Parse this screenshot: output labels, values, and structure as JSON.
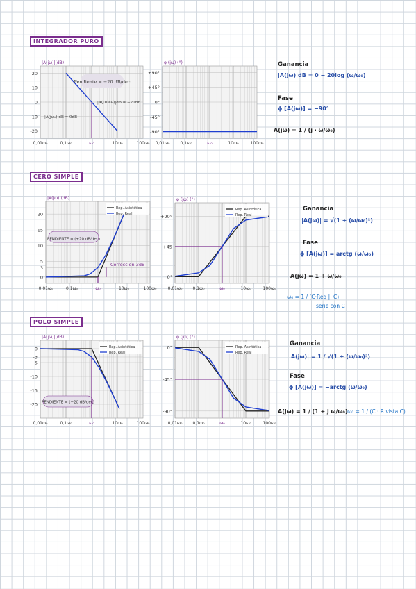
{
  "sections": {
    "integrador": "INTEGRADOR PURO",
    "cero": "CERO SIMPLE",
    "polo": "POLO SIMPLE"
  },
  "colors": {
    "asymptotic": "#222222",
    "real": "#1f3fd0",
    "accent": "#7b2e8e",
    "notes_blue": "#2a4fa8"
  },
  "chart_data": [
    {
      "id": "int-mag",
      "type": "line",
      "ylabel": "|A(jω)|(dB)",
      "xlog": true,
      "xlim": [
        0.01,
        100
      ],
      "ylim": [
        -25,
        25
      ],
      "xticks": [
        "0,01ω₀",
        "0,1ω₀",
        "ω₀",
        "10ω₀",
        "100ω₀"
      ],
      "yticks": [
        20,
        10,
        0,
        -10,
        -20
      ],
      "series": [
        {
          "style": "real",
          "x": [
            0.1,
            10
          ],
          "y": [
            20,
            -20
          ]
        }
      ],
      "annotations": [
        "Pendiente = −20 dB/dec",
        "|A(jω₀)|dB = 0dB",
        "|A(j10ω₀)|dB = −20dB"
      ]
    },
    {
      "id": "int-phase",
      "type": "line",
      "ylabel": "φ (jω) (°)",
      "xlog": true,
      "xlim": [
        0.01,
        100
      ],
      "ylim": [
        -110,
        110
      ],
      "xticks": [
        "0,01ω₀",
        "0,1ω₀",
        "ω₀",
        "10ω₀",
        "100ω₀"
      ],
      "yticks": [
        "+90°",
        "+45°",
        "0°",
        "-45°",
        "-90°"
      ],
      "series": [
        {
          "style": "real",
          "x": [
            0.01,
            100
          ],
          "y": [
            -90,
            -90
          ]
        }
      ]
    },
    {
      "id": "cero-mag",
      "type": "line",
      "ylabel": "|A(jω)|(dB)",
      "xlog": true,
      "xlim": [
        0.01,
        100
      ],
      "ylim": [
        -2,
        24
      ],
      "xticks": [
        "0,01ω₀",
        "0,1ω₀",
        "ω₀",
        "10ω₀",
        "100ω₀"
      ],
      "yticks": [
        20,
        15,
        10,
        5,
        3,
        0
      ],
      "series": [
        {
          "name": "Rep. Asintótica",
          "style": "asym",
          "x": [
            0.01,
            1,
            10
          ],
          "y": [
            0,
            0,
            20
          ]
        },
        {
          "name": "Rep. Real",
          "style": "real",
          "x": [
            0.01,
            0.3,
            0.5,
            1,
            2,
            4,
            10
          ],
          "y": [
            0,
            0.4,
            1,
            3,
            7,
            12.3,
            20
          ]
        }
      ],
      "annotations": [
        "PENDIENTE = (+20 dB/dec)",
        "Corrección 3dB"
      ]
    },
    {
      "id": "cero-phase",
      "type": "line",
      "ylabel": "φ (jω) (°)",
      "xlog": true,
      "xlim": [
        0.01,
        100
      ],
      "ylim": [
        -10,
        110
      ],
      "xticks": [
        "0,01ω₀",
        "0,1ω₀",
        "ω₀",
        "10ω₀",
        "100ω₀"
      ],
      "yticks": [
        "+90°",
        "+45",
        "0°"
      ],
      "series": [
        {
          "name": "Rep. Asintótica",
          "style": "asym",
          "x": [
            0.01,
            0.1,
            10,
            100
          ],
          "y": [
            0,
            0,
            90,
            90
          ]
        },
        {
          "name": "Rep. Real",
          "style": "real",
          "x": [
            0.01,
            0.1,
            0.3,
            1,
            3,
            10,
            100
          ],
          "y": [
            0.6,
            5.7,
            16.7,
            45,
            71.6,
            84.3,
            89.4
          ]
        }
      ]
    },
    {
      "id": "polo-mag",
      "type": "line",
      "ylabel": "|A(jω)|(dB)",
      "xlog": true,
      "xlim": [
        0.01,
        100
      ],
      "ylim": [
        -25,
        3
      ],
      "xticks": [
        "0,01ω₀",
        "0,1ω₀",
        "ω₀",
        "10ω₀",
        "100ω₀"
      ],
      "yticks": [
        0,
        -3,
        -5,
        -10,
        -15,
        -20
      ],
      "series": [
        {
          "name": "Rep. Asintótica",
          "style": "asym",
          "x": [
            0.01,
            1,
            12
          ],
          "y": [
            0,
            0,
            -21.6
          ]
        },
        {
          "name": "Rep. Real",
          "style": "real",
          "x": [
            0.01,
            0.3,
            0.5,
            1,
            2,
            4,
            12
          ],
          "y": [
            0,
            -0.4,
            -1,
            -3,
            -7,
            -12.3,
            -21.6
          ]
        }
      ],
      "annotations": [
        "PENDIENTE = (−20 dB/dec)"
      ]
    },
    {
      "id": "polo-phase",
      "type": "line",
      "ylabel": "φ (jω) (°)",
      "xlog": true,
      "xlim": [
        0.01,
        100
      ],
      "ylim": [
        -100,
        10
      ],
      "xticks": [
        "0,01ω₀",
        "0,1ω₀",
        "ω₀",
        "10ω₀",
        "100ω₀"
      ],
      "yticks": [
        "0°",
        "-45°",
        "-90°"
      ],
      "series": [
        {
          "name": "Rep. Asintótica",
          "style": "asym",
          "x": [
            0.01,
            0.1,
            10,
            100
          ],
          "y": [
            0,
            0,
            -90,
            -90
          ]
        },
        {
          "name": "Rep. Real",
          "style": "real",
          "x": [
            0.01,
            0.1,
            0.3,
            1,
            3,
            10,
            100
          ],
          "y": [
            -0.6,
            -5.7,
            -16.7,
            -45,
            -71.6,
            -84.3,
            -89.4
          ]
        }
      ]
    }
  ],
  "notes": {
    "integrador": {
      "ganancia_title": "Ganancia",
      "ganancia_formula": "|A(jω)|dB = 0 − 20log (ω/ω₀)",
      "fase_title": "Fase",
      "fase_formula": "ϕ [A(jω)] = −90°",
      "transfer": "A(jω) = 1 / (j · ω/ω₀)"
    },
    "cero": {
      "ganancia_title": "Ganancia",
      "ganancia_formula": "|A(jω)| = √(1 + (ω/ω₀)²)",
      "fase_title": "Fase",
      "fase_formula": "ϕ [A(jω)] = arctg (ω/ω₀)",
      "transfer": "A(jω) = 1 + ω/ω₀",
      "w0": "ω₀ = 1 / (C·Req || C)",
      "w0_note": "serie con C"
    },
    "polo": {
      "ganancia_title": "Ganancia",
      "ganancia_formula": "|A(jω)| = 1 / √(1 + (ω/ω₀)²)",
      "fase_title": "Fase",
      "fase_formula": "ϕ [A(jω)] = −arctg (ω/ω₀)",
      "transfer": "A(jω) = 1 / (1 + j ω/ω₀)",
      "w0": "ω₀ = 1 / (C · R vista C)"
    }
  }
}
